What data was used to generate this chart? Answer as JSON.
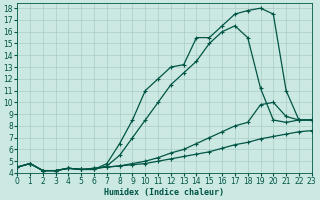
{
  "xlabel": "Humidex (Indice chaleur)",
  "xlim": [
    0,
    23
  ],
  "ylim": [
    4,
    18.4
  ],
  "xticks": [
    0,
    1,
    2,
    3,
    4,
    5,
    6,
    7,
    8,
    9,
    10,
    11,
    12,
    13,
    14,
    15,
    16,
    17,
    18,
    19,
    20,
    21,
    22,
    23
  ],
  "yticks": [
    4,
    5,
    6,
    7,
    8,
    9,
    10,
    11,
    12,
    13,
    14,
    15,
    16,
    17,
    18
  ],
  "bg_color": "#cce8e3",
  "line_color": "#005544",
  "grid_color": "#aaccC6",
  "curve_top_x": [
    0,
    1,
    2,
    3,
    4,
    5,
    6,
    7,
    8,
    9,
    10,
    11,
    12,
    13,
    14,
    15,
    16,
    17,
    18,
    19,
    20,
    21,
    22,
    23
  ],
  "curve_top_y": [
    4.5,
    4.8,
    4.2,
    4.2,
    4.4,
    4.3,
    4.3,
    4.8,
    6.5,
    8.5,
    11.0,
    12.0,
    13.0,
    13.2,
    15.5,
    15.5,
    16.5,
    17.5,
    17.8,
    18.0,
    17.5,
    11.0,
    8.5,
    8.5
  ],
  "curve_2nd_x": [
    0,
    1,
    2,
    3,
    4,
    5,
    6,
    7,
    8,
    9,
    10,
    11,
    12,
    13,
    14,
    15,
    16,
    17,
    18,
    19,
    20,
    21,
    22,
    23
  ],
  "curve_2nd_y": [
    4.5,
    4.8,
    4.2,
    4.2,
    4.4,
    4.3,
    4.3,
    4.6,
    5.5,
    7.0,
    8.5,
    10.0,
    11.5,
    12.5,
    13.5,
    15.0,
    16.0,
    16.5,
    15.5,
    11.2,
    8.5,
    8.3,
    8.5,
    8.5
  ],
  "curve_3rd_x": [
    0,
    1,
    2,
    3,
    4,
    5,
    6,
    7,
    8,
    9,
    10,
    11,
    12,
    13,
    14,
    15,
    16,
    17,
    18,
    19,
    20,
    21,
    22,
    23
  ],
  "curve_3rd_y": [
    4.5,
    4.8,
    4.2,
    4.2,
    4.4,
    4.3,
    4.4,
    4.5,
    4.6,
    4.8,
    5.0,
    5.3,
    5.7,
    6.0,
    6.5,
    7.0,
    7.5,
    8.0,
    8.3,
    9.8,
    10.0,
    8.8,
    8.5,
    8.5
  ],
  "curve_4th_x": [
    0,
    1,
    2,
    3,
    4,
    5,
    6,
    7,
    8,
    9,
    10,
    11,
    12,
    13,
    14,
    15,
    16,
    17,
    18,
    19,
    20,
    21,
    22,
    23
  ],
  "curve_4th_y": [
    4.5,
    4.8,
    4.2,
    4.2,
    4.4,
    4.3,
    4.4,
    4.5,
    4.6,
    4.7,
    4.8,
    5.0,
    5.2,
    5.4,
    5.6,
    5.8,
    6.1,
    6.4,
    6.6,
    6.9,
    7.1,
    7.3,
    7.5,
    7.6
  ]
}
